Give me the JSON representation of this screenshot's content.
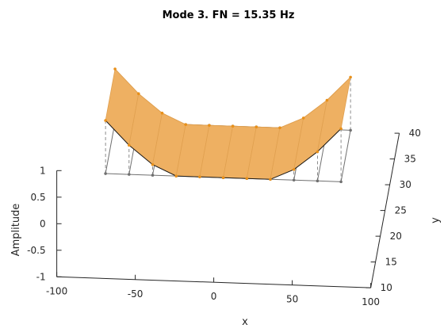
{
  "colors": {
    "deformed_fill": "#eeb062",
    "deformed_edge": "#e0a050",
    "mesh_dot": "#e8901a",
    "undeformed": "#707070",
    "axis": "#262626"
  },
  "chart_data": {
    "type": "surface3d",
    "title": "Mode 3. FN = 15.35 Hz",
    "xlabel": "x",
    "ylabel": "y",
    "zlabel": "Amplitude",
    "xlim": [
      -100,
      100
    ],
    "ylim": [
      10,
      40
    ],
    "zlim": [
      -1,
      1
    ],
    "x_ticks": [
      "-100",
      "-50",
      "0",
      "50",
      "100"
    ],
    "y_ticks": [
      "10",
      "15",
      "20",
      "25",
      "30",
      "35",
      "40"
    ],
    "z_ticks": [
      "-1",
      "-0.5",
      "0",
      "0.5",
      "1"
    ],
    "nodes_x": [
      -75,
      -60,
      -45,
      -30,
      -15,
      0,
      15,
      30,
      45,
      60,
      75
    ],
    "nodes_y": [
      20,
      30
    ],
    "mode_shape": [
      1.0,
      0.55,
      0.2,
      0.0,
      0.0,
      0.0,
      0.0,
      0.0,
      0.2,
      0.55,
      1.0
    ],
    "series": [
      {
        "name": "",
        "style": "deformed"
      },
      {
        "name": "",
        "style": "undeformed"
      }
    ]
  }
}
